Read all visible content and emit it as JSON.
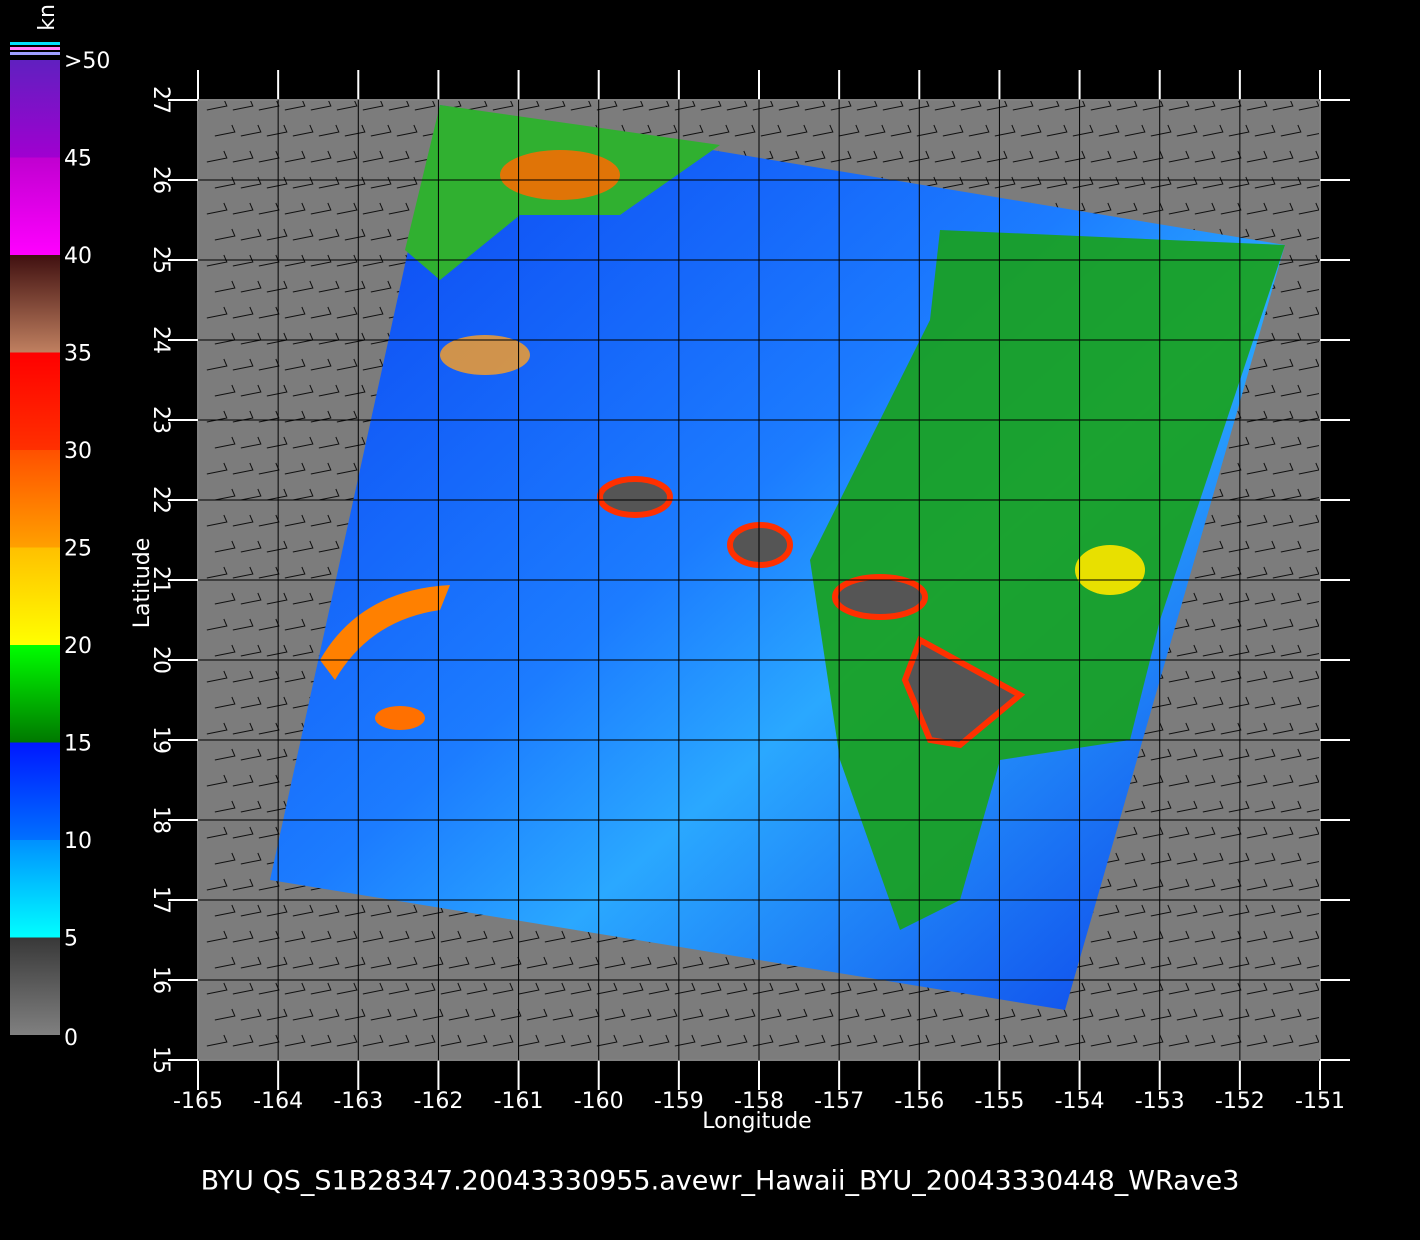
{
  "map": {
    "xlabel": "Longitude",
    "ylabel": "Latitude",
    "xlim": [
      -165,
      -151
    ],
    "ylim": [
      15,
      27
    ],
    "xticks": [
      -165,
      -164,
      -163,
      -162,
      -161,
      -160,
      -159,
      -158,
      -157,
      -156,
      -155,
      -154,
      -153,
      -152,
      -151
    ],
    "yticks": [
      15,
      16,
      17,
      18,
      19,
      20,
      21,
      22,
      23,
      24,
      25,
      26,
      27
    ]
  },
  "colorbar": {
    "unit": "kn",
    "lim": [
      0,
      50
    ],
    "ticks": [
      0,
      5,
      10,
      15,
      20,
      25,
      30,
      {
        "value": 50,
        "label": ">50"
      },
      35,
      40,
      45
    ],
    "bands": [
      {
        "from": 0,
        "to": 5,
        "colors": [
          "#808080",
          "#383838"
        ]
      },
      {
        "from": 5,
        "to": 10,
        "colors": [
          "#00ffff",
          "#0090ff"
        ]
      },
      {
        "from": 10,
        "to": 15,
        "colors": [
          "#0070ff",
          "#0018ff"
        ]
      },
      {
        "from": 15,
        "to": 20,
        "colors": [
          "#007800",
          "#00ff00"
        ]
      },
      {
        "from": 20,
        "to": 25,
        "colors": [
          "#ffff00",
          "#ffc000"
        ]
      },
      {
        "from": 25,
        "to": 30,
        "colors": [
          "#ffa000",
          "#ff5000"
        ]
      },
      {
        "from": 30,
        "to": 35,
        "colors": [
          "#ff3000",
          "#ff0000"
        ]
      },
      {
        "from": 35,
        "to": 40,
        "colors": [
          "#c08060",
          "#401010"
        ]
      },
      {
        "from": 40,
        "to": 45,
        "colors": [
          "#ff00ff",
          "#c000d0"
        ]
      },
      {
        "from": 45,
        "to": 50,
        "colors": [
          "#a000d0",
          "#6020c0"
        ]
      }
    ]
  },
  "footer": "BYU  QS_S1B28347.20043330955.avewr_Hawaii_BYU_20043330448_WRave3"
}
